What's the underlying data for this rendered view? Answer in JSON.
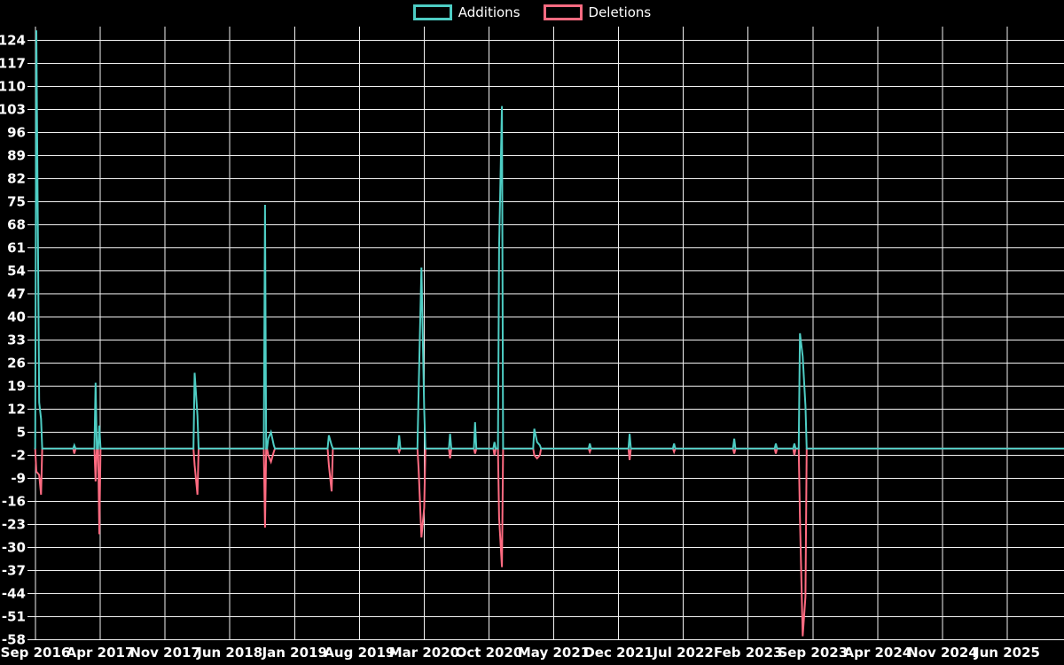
{
  "chart_data": {
    "type": "line",
    "title": "",
    "description": "Code-frequency style chart: weekly additions (teal) and deletions (pink) over time on a black background with white grid",
    "legend": [
      {
        "label": "Additions",
        "color": "#4ecdc4"
      },
      {
        "label": "Deletions",
        "color": "#ff6b81"
      }
    ],
    "x_tick_labels": [
      "Sep 2016",
      "Apr 2017",
      "Nov 2017",
      "Jun 2018",
      "Jan 2019",
      "Aug 2019",
      "Mar 2020",
      "Oct 2020",
      "May 2021",
      "Dec 2021",
      "Jul 2022",
      "Feb 2023",
      "Sep 2023",
      "Apr 2024",
      "Nov 2024",
      "Jun 2025"
    ],
    "x_months_per_gridline": 7,
    "xlim_months": [
      0,
      111.2
    ],
    "y_ticks": [
      124,
      117,
      110,
      103,
      96,
      89,
      82,
      75,
      68,
      61,
      54,
      47,
      40,
      33,
      26,
      19,
      12,
      5,
      -2,
      -9,
      -16,
      -23,
      -30,
      -37,
      -44,
      -51,
      -58
    ],
    "ylim": [
      -58,
      128
    ],
    "grid": true,
    "background": "#000000",
    "grid_color": "#f2f2f2",
    "label_color": "#ffffff",
    "series_note": "events are [monthsSinceSep2016, additions, deletions]; every other week both series are 0",
    "events": [
      [
        0.1,
        127,
        -7
      ],
      [
        0.4,
        14,
        -8
      ],
      [
        0.6,
        9,
        -14
      ],
      [
        4.2,
        1,
        -1.5
      ],
      [
        6.5,
        20,
        -10
      ],
      [
        6.9,
        7,
        -26
      ],
      [
        17.2,
        23,
        -5
      ],
      [
        17.5,
        10,
        -14
      ],
      [
        24.8,
        74,
        -24
      ],
      [
        25.15,
        3,
        -2
      ],
      [
        25.45,
        5,
        -4
      ],
      [
        25.75,
        1,
        -1
      ],
      [
        31.7,
        4,
        -5
      ],
      [
        32.0,
        1,
        -13
      ],
      [
        39.3,
        4,
        -1
      ],
      [
        41.4,
        17,
        -6
      ],
      [
        41.7,
        55,
        -27
      ],
      [
        42.0,
        12,
        -18
      ],
      [
        44.8,
        4.5,
        -3
      ],
      [
        47.5,
        8,
        -1.5
      ],
      [
        49.6,
        2,
        -2
      ],
      [
        50.1,
        61,
        -21
      ],
      [
        50.4,
        104,
        -36
      ],
      [
        53.9,
        6,
        -2
      ],
      [
        54.2,
        2,
        -3
      ],
      [
        54.5,
        1,
        -2
      ],
      [
        59.9,
        1.5,
        -1
      ],
      [
        64.2,
        4.5,
        -3.5
      ],
      [
        69.0,
        1.5,
        -1
      ],
      [
        75.5,
        3,
        -1.5
      ],
      [
        80.0,
        1.5,
        -1.5
      ],
      [
        82.0,
        1.5,
        -2
      ],
      [
        82.6,
        35,
        -21
      ],
      [
        82.9,
        28,
        -57
      ],
      [
        83.2,
        13,
        -45
      ]
    ]
  }
}
